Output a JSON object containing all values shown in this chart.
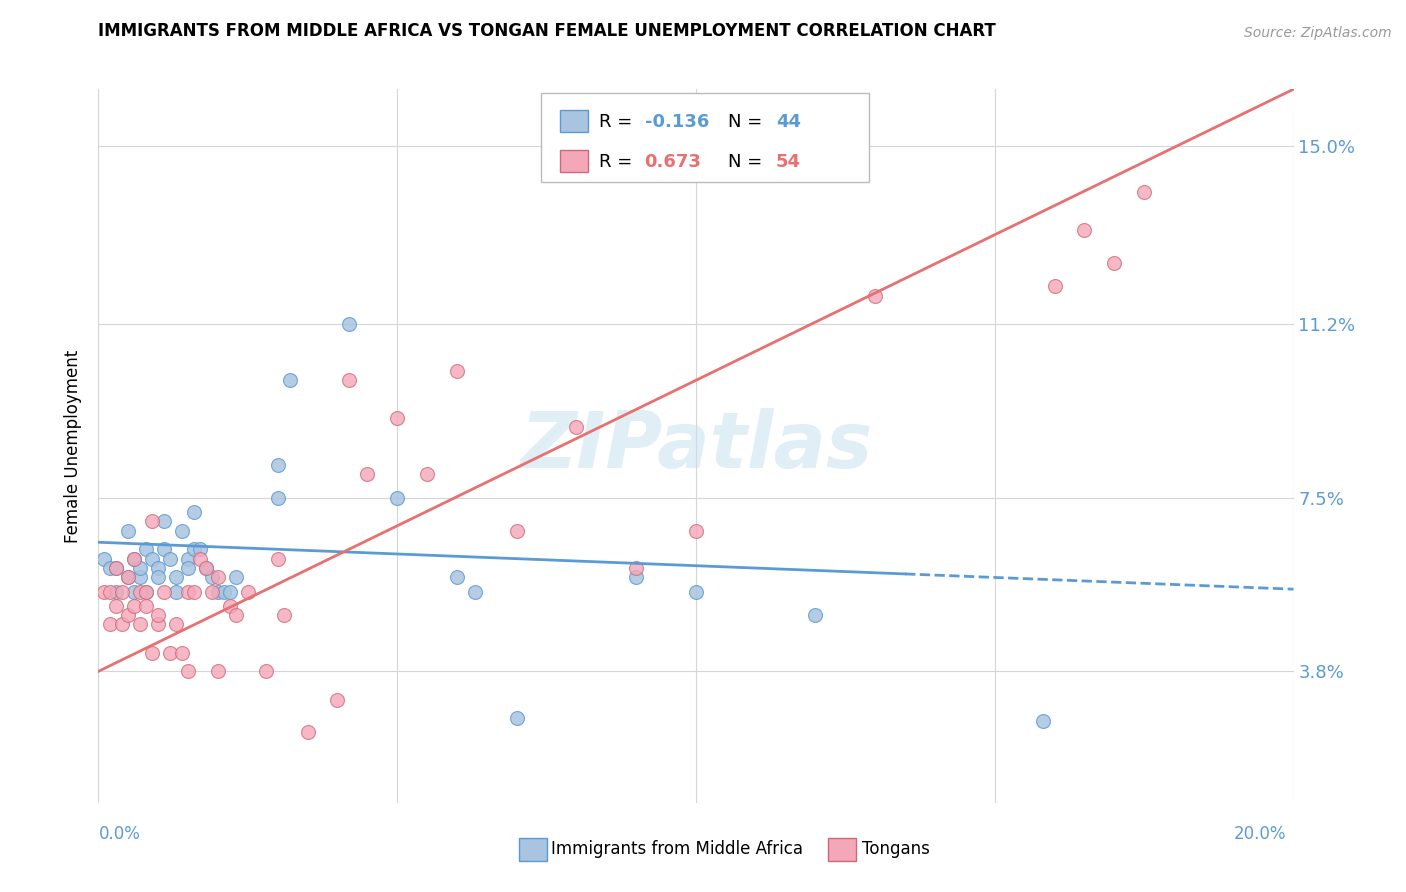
{
  "title": "IMMIGRANTS FROM MIDDLE AFRICA VS TONGAN FEMALE UNEMPLOYMENT CORRELATION CHART",
  "source": "Source: ZipAtlas.com",
  "ylabel": "Female Unemployment",
  "yticks": [
    "3.8%",
    "7.5%",
    "11.2%",
    "15.0%"
  ],
  "ytick_vals": [
    0.038,
    0.075,
    0.112,
    0.15
  ],
  "xmin": 0.0,
  "xmax": 0.2,
  "ymin": 0.01,
  "ymax": 0.162,
  "legend1_color": "#a8c4e0",
  "legend2_color": "#f4a7b9",
  "series1_color": "#a8c4e0",
  "series2_color": "#f4a7b9",
  "line1_color": "#5b9bd5",
  "line2_color": "#e87070",
  "watermark": "ZIPatlas",
  "background_color": "#ffffff",
  "grid_color": "#d5d5d5",
  "blue_dots": [
    [
      0.001,
      0.062
    ],
    [
      0.002,
      0.06
    ],
    [
      0.003,
      0.055
    ],
    [
      0.003,
      0.06
    ],
    [
      0.005,
      0.058
    ],
    [
      0.005,
      0.068
    ],
    [
      0.006,
      0.055
    ],
    [
      0.006,
      0.062
    ],
    [
      0.007,
      0.058
    ],
    [
      0.007,
      0.06
    ],
    [
      0.008,
      0.064
    ],
    [
      0.008,
      0.055
    ],
    [
      0.009,
      0.062
    ],
    [
      0.01,
      0.06
    ],
    [
      0.01,
      0.058
    ],
    [
      0.011,
      0.07
    ],
    [
      0.011,
      0.064
    ],
    [
      0.012,
      0.062
    ],
    [
      0.013,
      0.058
    ],
    [
      0.013,
      0.055
    ],
    [
      0.014,
      0.068
    ],
    [
      0.015,
      0.062
    ],
    [
      0.015,
      0.06
    ],
    [
      0.016,
      0.072
    ],
    [
      0.016,
      0.064
    ],
    [
      0.017,
      0.064
    ],
    [
      0.018,
      0.06
    ],
    [
      0.019,
      0.058
    ],
    [
      0.02,
      0.055
    ],
    [
      0.021,
      0.055
    ],
    [
      0.022,
      0.055
    ],
    [
      0.023,
      0.058
    ],
    [
      0.03,
      0.082
    ],
    [
      0.03,
      0.075
    ],
    [
      0.032,
      0.1
    ],
    [
      0.042,
      0.112
    ],
    [
      0.05,
      0.075
    ],
    [
      0.06,
      0.058
    ],
    [
      0.063,
      0.055
    ],
    [
      0.07,
      0.028
    ],
    [
      0.09,
      0.058
    ],
    [
      0.1,
      0.055
    ],
    [
      0.12,
      0.05
    ],
    [
      0.158,
      0.0275
    ]
  ],
  "pink_dots": [
    [
      0.001,
      0.055
    ],
    [
      0.002,
      0.048
    ],
    [
      0.002,
      0.055
    ],
    [
      0.003,
      0.052
    ],
    [
      0.003,
      0.06
    ],
    [
      0.004,
      0.048
    ],
    [
      0.004,
      0.055
    ],
    [
      0.005,
      0.05
    ],
    [
      0.005,
      0.058
    ],
    [
      0.006,
      0.052
    ],
    [
      0.006,
      0.062
    ],
    [
      0.007,
      0.048
    ],
    [
      0.007,
      0.055
    ],
    [
      0.008,
      0.052
    ],
    [
      0.008,
      0.055
    ],
    [
      0.009,
      0.042
    ],
    [
      0.009,
      0.07
    ],
    [
      0.01,
      0.048
    ],
    [
      0.01,
      0.05
    ],
    [
      0.011,
      0.055
    ],
    [
      0.012,
      0.042
    ],
    [
      0.013,
      0.048
    ],
    [
      0.014,
      0.042
    ],
    [
      0.015,
      0.038
    ],
    [
      0.015,
      0.055
    ],
    [
      0.016,
      0.055
    ],
    [
      0.017,
      0.062
    ],
    [
      0.018,
      0.06
    ],
    [
      0.019,
      0.055
    ],
    [
      0.02,
      0.038
    ],
    [
      0.02,
      0.058
    ],
    [
      0.022,
      0.052
    ],
    [
      0.023,
      0.05
    ],
    [
      0.025,
      0.055
    ],
    [
      0.028,
      0.038
    ],
    [
      0.03,
      0.062
    ],
    [
      0.031,
      0.05
    ],
    [
      0.035,
      0.025
    ],
    [
      0.04,
      0.032
    ],
    [
      0.042,
      0.1
    ],
    [
      0.045,
      0.08
    ],
    [
      0.05,
      0.092
    ],
    [
      0.055,
      0.08
    ],
    [
      0.06,
      0.102
    ],
    [
      0.07,
      0.068
    ],
    [
      0.08,
      0.09
    ],
    [
      0.09,
      0.06
    ],
    [
      0.1,
      0.068
    ],
    [
      0.13,
      0.118
    ],
    [
      0.16,
      0.12
    ],
    [
      0.165,
      0.132
    ],
    [
      0.17,
      0.125
    ],
    [
      0.175,
      0.14
    ]
  ],
  "line1_y_start": 0.0655,
  "line1_slope": -0.05,
  "line1_solid_end": 0.135,
  "line2_y_start": 0.038,
  "line2_slope": 0.62
}
